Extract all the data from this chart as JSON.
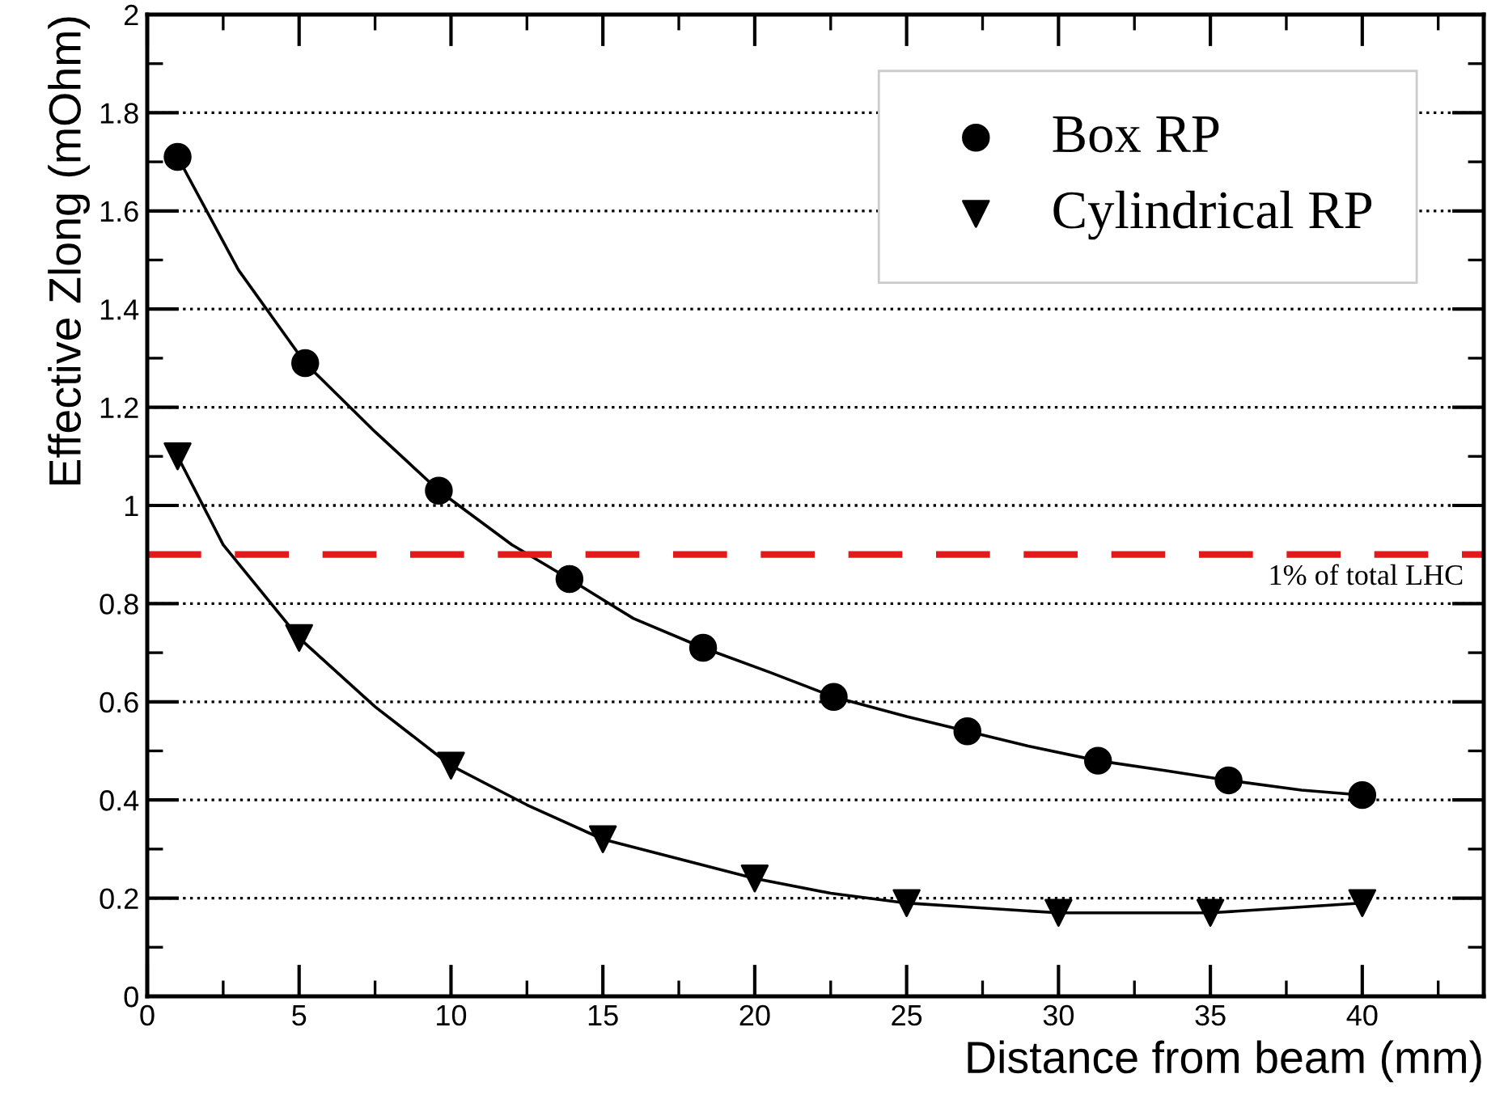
{
  "chart_data": {
    "type": "line",
    "xlabel": "Distance from beam (mm)",
    "ylabel": "Effective Zlong (mOhm)",
    "xlim": [
      0,
      44
    ],
    "xticks": [
      0,
      5,
      10,
      15,
      20,
      25,
      30,
      35,
      40
    ],
    "ylim": [
      0,
      2
    ],
    "yticks": [
      0,
      0.2,
      0.4,
      0.6,
      0.8,
      1,
      1.2,
      1.4,
      1.6,
      1.8,
      2
    ],
    "grid": "y",
    "legend": "top right",
    "line_style": "solid",
    "series": [
      {
        "color": "#000000",
        "marker": "none",
        "x": [
          1,
          3,
          5.2,
          7.5,
          9.6,
          12,
          13.9,
          16,
          18.3,
          20.5,
          22.6,
          25,
          27,
          29,
          31.3,
          33.5,
          35.6,
          38,
          40
        ],
        "values": [
          1.71,
          1.48,
          1.29,
          1.15,
          1.03,
          0.92,
          0.85,
          0.77,
          0.71,
          0.66,
          0.61,
          0.57,
          0.54,
          0.51,
          0.48,
          0.46,
          0.44,
          0.42,
          0.41
        ]
      },
      {
        "color": "#000000",
        "marker": "none",
        "x": [
          1,
          2.5,
          5,
          7.5,
          10,
          12.5,
          15,
          17.5,
          20,
          22.5,
          25,
          27.5,
          30,
          32.5,
          35,
          37.5,
          40
        ],
        "values": [
          1.1,
          0.92,
          0.73,
          0.59,
          0.47,
          0.39,
          0.32,
          0.28,
          0.24,
          0.21,
          0.19,
          0.18,
          0.17,
          0.17,
          0.17,
          0.18,
          0.19
        ]
      },
      {
        "type": "scatter",
        "name": "Box RP",
        "color": "#000000",
        "marker": "circle",
        "x": [
          1,
          5.2,
          9.6,
          13.9,
          18.3,
          22.6,
          27.0,
          31.3,
          35.6,
          40
        ],
        "values": [
          1.71,
          1.29,
          1.03,
          0.85,
          0.71,
          0.61,
          0.54,
          0.48,
          0.44,
          0.41
        ]
      },
      {
        "type": "scatter",
        "name": "Cylindrical RP",
        "color": "#000000",
        "marker": "triangle",
        "x": [
          1,
          5,
          10,
          15,
          20,
          25,
          30,
          35,
          40
        ],
        "values": [
          1.1,
          0.73,
          0.47,
          0.32,
          0.24,
          0.19,
          0.17,
          0.17,
          0.19
        ]
      }
    ],
    "ref_lines": [
      {
        "axis": "y",
        "value": 0.9,
        "label": "1% of total LHC",
        "color": "#e31a1c",
        "line_style": "dashed"
      }
    ]
  }
}
